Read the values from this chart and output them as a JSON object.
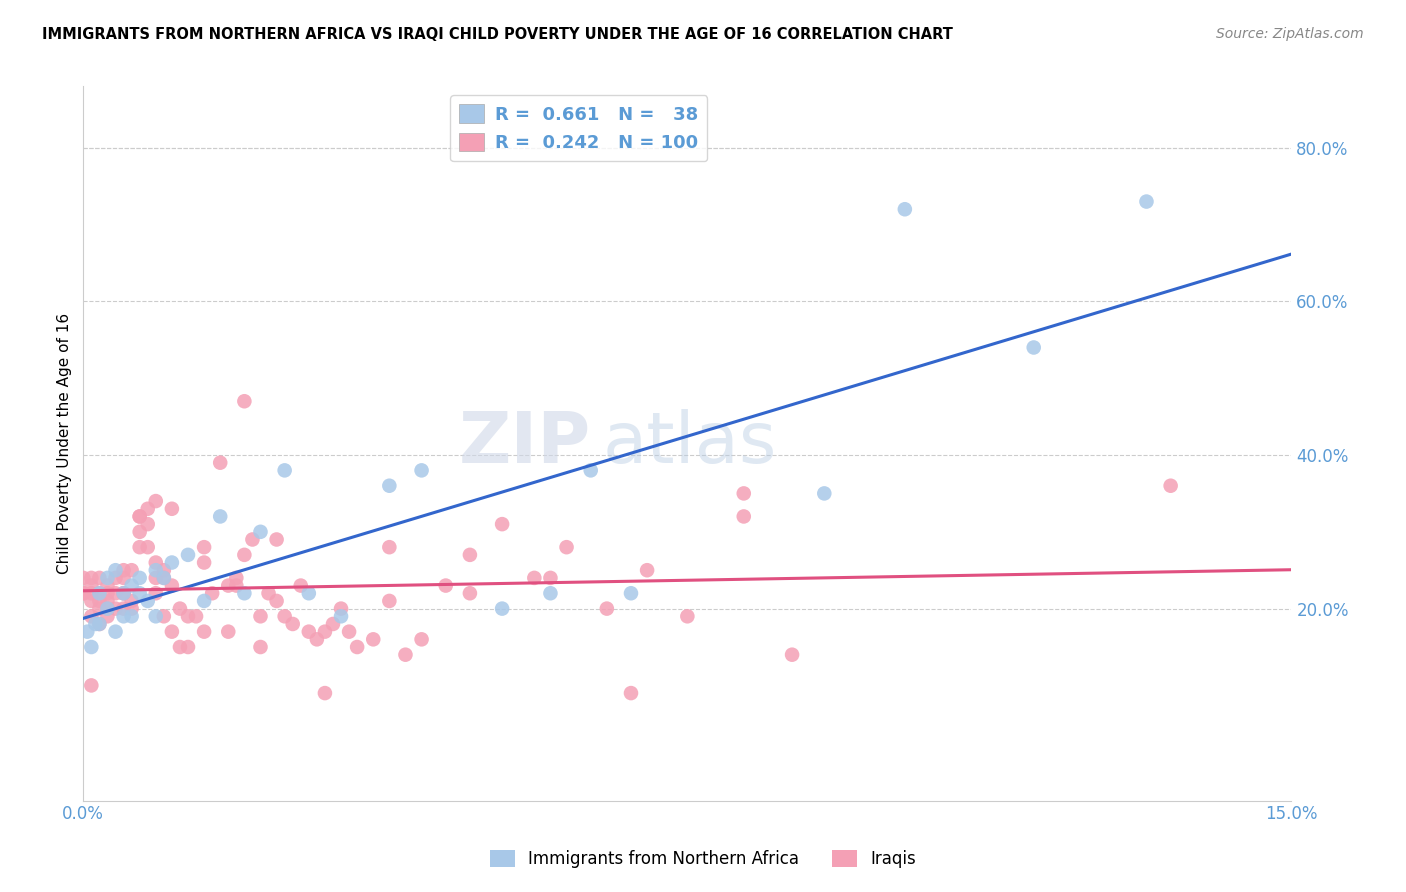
{
  "title": "IMMIGRANTS FROM NORTHERN AFRICA VS IRAQI CHILD POVERTY UNDER THE AGE OF 16 CORRELATION CHART",
  "source": "Source: ZipAtlas.com",
  "ylabel": "Child Poverty Under the Age of 16",
  "blue_color": "#A8C8E8",
  "pink_color": "#F4A0B5",
  "blue_line_color": "#3366CC",
  "pink_line_color": "#E05080",
  "axis_color": "#5B9BD5",
  "watermark_zip": "ZIP",
  "watermark_atlas": "atlas",
  "xlim": [
    0.0,
    0.15
  ],
  "ylim": [
    -0.05,
    0.88
  ],
  "yticks": [
    0.2,
    0.4,
    0.6,
    0.8
  ],
  "ytick_labels": [
    "20.0%",
    "40.0%",
    "60.0%",
    "80.0%"
  ],
  "xticks": [
    0.0,
    0.15
  ],
  "xtick_labels": [
    "0.0%",
    "15.0%"
  ],
  "blue_scatter_x": [
    0.0005,
    0.001,
    0.0015,
    0.002,
    0.002,
    0.003,
    0.003,
    0.004,
    0.004,
    0.005,
    0.005,
    0.006,
    0.006,
    0.007,
    0.007,
    0.008,
    0.009,
    0.009,
    0.01,
    0.011,
    0.013,
    0.015,
    0.017,
    0.02,
    0.022,
    0.025,
    0.028,
    0.032,
    0.038,
    0.042,
    0.052,
    0.058,
    0.063,
    0.068,
    0.092,
    0.102,
    0.118,
    0.132
  ],
  "blue_scatter_y": [
    0.17,
    0.15,
    0.18,
    0.18,
    0.22,
    0.2,
    0.24,
    0.17,
    0.25,
    0.19,
    0.22,
    0.19,
    0.23,
    0.22,
    0.24,
    0.21,
    0.19,
    0.25,
    0.24,
    0.26,
    0.27,
    0.21,
    0.32,
    0.22,
    0.3,
    0.38,
    0.22,
    0.19,
    0.36,
    0.38,
    0.2,
    0.22,
    0.38,
    0.22,
    0.35,
    0.72,
    0.54,
    0.73
  ],
  "pink_scatter_x": [
    0.0,
    0.0,
    0.001,
    0.001,
    0.001,
    0.001,
    0.001,
    0.002,
    0.002,
    0.002,
    0.002,
    0.003,
    0.003,
    0.003,
    0.003,
    0.004,
    0.004,
    0.004,
    0.005,
    0.005,
    0.005,
    0.005,
    0.006,
    0.006,
    0.006,
    0.007,
    0.007,
    0.007,
    0.008,
    0.008,
    0.008,
    0.009,
    0.009,
    0.009,
    0.01,
    0.01,
    0.01,
    0.011,
    0.011,
    0.012,
    0.012,
    0.013,
    0.013,
    0.014,
    0.015,
    0.015,
    0.016,
    0.017,
    0.018,
    0.018,
    0.019,
    0.02,
    0.02,
    0.021,
    0.022,
    0.022,
    0.023,
    0.024,
    0.025,
    0.026,
    0.027,
    0.028,
    0.029,
    0.03,
    0.031,
    0.032,
    0.033,
    0.034,
    0.036,
    0.038,
    0.04,
    0.042,
    0.045,
    0.048,
    0.052,
    0.056,
    0.06,
    0.065,
    0.07,
    0.075,
    0.082,
    0.088,
    0.0,
    0.001,
    0.002,
    0.003,
    0.005,
    0.007,
    0.009,
    0.011,
    0.015,
    0.019,
    0.024,
    0.03,
    0.038,
    0.048,
    0.058,
    0.068,
    0.082,
    0.135
  ],
  "pink_scatter_y": [
    0.22,
    0.24,
    0.1,
    0.19,
    0.21,
    0.22,
    0.23,
    0.18,
    0.2,
    0.22,
    0.24,
    0.19,
    0.21,
    0.22,
    0.23,
    0.2,
    0.22,
    0.24,
    0.2,
    0.22,
    0.24,
    0.25,
    0.2,
    0.21,
    0.25,
    0.28,
    0.3,
    0.32,
    0.31,
    0.33,
    0.28,
    0.34,
    0.22,
    0.24,
    0.24,
    0.25,
    0.19,
    0.23,
    0.17,
    0.2,
    0.15,
    0.15,
    0.19,
    0.19,
    0.17,
    0.26,
    0.22,
    0.39,
    0.23,
    0.17,
    0.24,
    0.47,
    0.27,
    0.29,
    0.15,
    0.19,
    0.22,
    0.21,
    0.19,
    0.18,
    0.23,
    0.17,
    0.16,
    0.17,
    0.18,
    0.2,
    0.17,
    0.15,
    0.16,
    0.21,
    0.14,
    0.16,
    0.23,
    0.27,
    0.31,
    0.24,
    0.28,
    0.2,
    0.25,
    0.19,
    0.32,
    0.14,
    0.22,
    0.24,
    0.21,
    0.2,
    0.22,
    0.32,
    0.26,
    0.33,
    0.28,
    0.23,
    0.29,
    0.09,
    0.28,
    0.22,
    0.24,
    0.09,
    0.35,
    0.36
  ]
}
